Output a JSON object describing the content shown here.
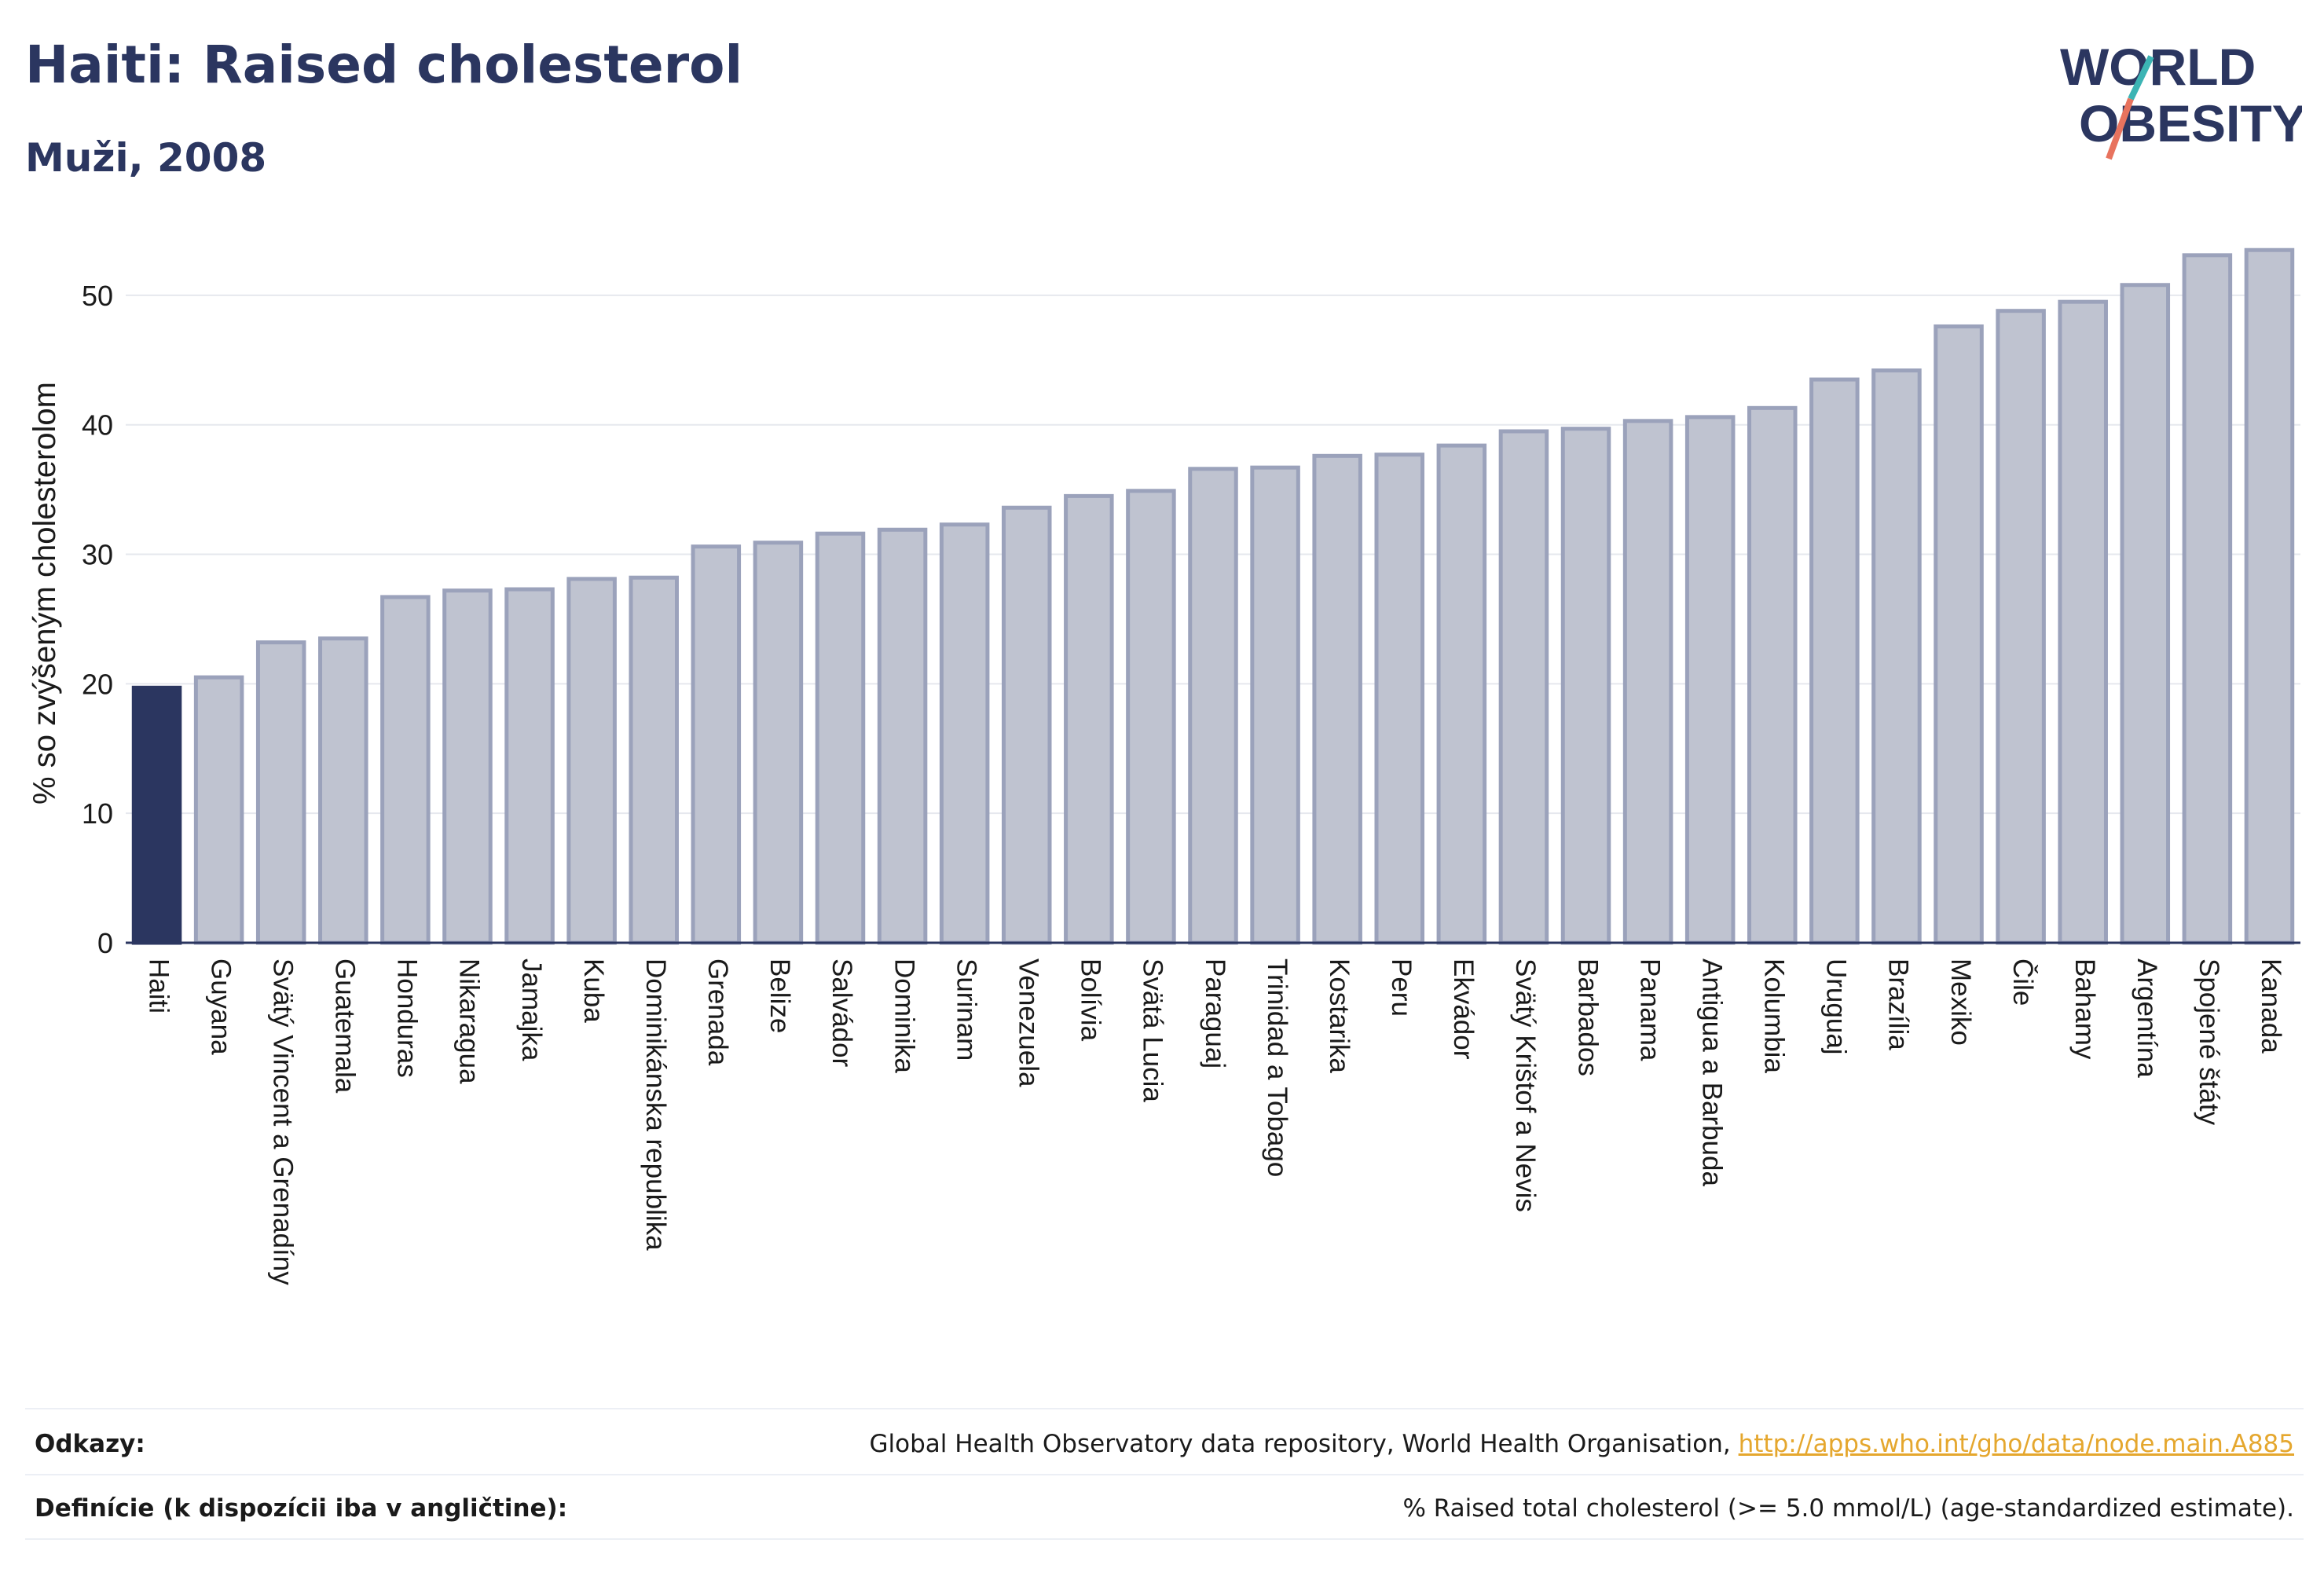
{
  "header": {
    "title": "Haiti: Raised cholesterol",
    "subtitle": "Muži, 2008"
  },
  "logo": {
    "line1": "WORLD",
    "line2": "OBESITY",
    "colors": {
      "text": "#2b3660",
      "slash_teal": "#3cb4b4",
      "slash_coral": "#e8735e"
    }
  },
  "chart_data": {
    "type": "bar",
    "ylabel": "% so zvýšeným cholesterolom",
    "xlabel": "",
    "ylim": [
      0,
      54
    ],
    "yticks": [
      0,
      10,
      20,
      30,
      40,
      50
    ],
    "grid": true,
    "highlight": "Haiti",
    "colors": {
      "highlight": "#2b3660",
      "bar": "#bfc3d0",
      "bar_edge": "#9ba2bb"
    },
    "categories": [
      "Haiti",
      "Guyana",
      "Svätý Vincent a Grenadíny",
      "Guatemala",
      "Honduras",
      "Nikaragua",
      "Jamajka",
      "Kuba",
      "Dominikánska republika",
      "Grenada",
      "Belize",
      "Salvádor",
      "Dominika",
      "Surinam",
      "Venezuela",
      "Bolívia",
      "Svätá Lucia",
      "Paraguaj",
      "Trinidad a Tobago",
      "Kostarika",
      "Peru",
      "Ekvádor",
      "Svätý Krištof a Nevis",
      "Barbados",
      "Panama",
      "Antigua a Barbuda",
      "Kolumbia",
      "Uruguaj",
      "Brazília",
      "Mexiko",
      "Čile",
      "Bahamy",
      "Argentína",
      "Spojené štáty",
      "Kanada"
    ],
    "values": [
      19.7,
      20.5,
      23.2,
      23.5,
      26.7,
      27.2,
      27.3,
      28.1,
      28.2,
      30.6,
      30.9,
      31.6,
      31.9,
      32.3,
      33.6,
      34.5,
      34.9,
      36.6,
      36.7,
      37.6,
      37.7,
      38.4,
      39.5,
      39.7,
      40.3,
      40.6,
      41.3,
      43.5,
      44.2,
      47.6,
      48.8,
      49.5,
      50.8,
      53.1,
      53.5
    ]
  },
  "footer": {
    "references_label": "Odkazy:",
    "references_text": "Global Health Observatory data repository, World Health Organisation,",
    "references_link": "http://apps.who.int/gho/data/node.main.A885",
    "definitions_label": "Definície (k dispozícii iba v angličtine):",
    "definitions_text": "% Raised total cholesterol (>= 5.0 mmol/L) (age-standardized estimate)."
  }
}
